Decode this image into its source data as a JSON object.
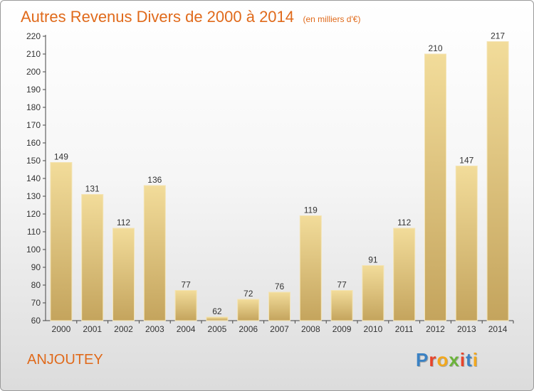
{
  "chart_data": {
    "type": "bar",
    "title": "Autres Revenus Divers de 2000 à 2014",
    "unit": "(en milliers d'€)",
    "categories": [
      "2000",
      "2001",
      "2002",
      "2003",
      "2004",
      "2005",
      "2006",
      "2007",
      "2008",
      "2009",
      "2010",
      "2011",
      "2012",
      "2013",
      "2014"
    ],
    "values": [
      149,
      131,
      112,
      136,
      77,
      62,
      72,
      76,
      119,
      77,
      91,
      112,
      210,
      147,
      217
    ],
    "ylim": [
      60,
      220
    ],
    "yticks": [
      "60",
      "70",
      "80",
      "90",
      "100",
      "110",
      "120",
      "130",
      "140",
      "150",
      "160",
      "170",
      "180",
      "190",
      "200",
      "210",
      "220"
    ],
    "grid": false,
    "bar_color_top": "#f2dc9a",
    "bar_color_bottom": "#c4a45d"
  },
  "footer": {
    "commune": "ANJOUTEY",
    "brand": "Proxiti",
    "brand_colors": [
      "#3b82c4",
      "#e8442a",
      "#f2a81d",
      "#6bb33a",
      "#e8442a",
      "#3b82c4",
      "#f2a81d"
    ]
  }
}
